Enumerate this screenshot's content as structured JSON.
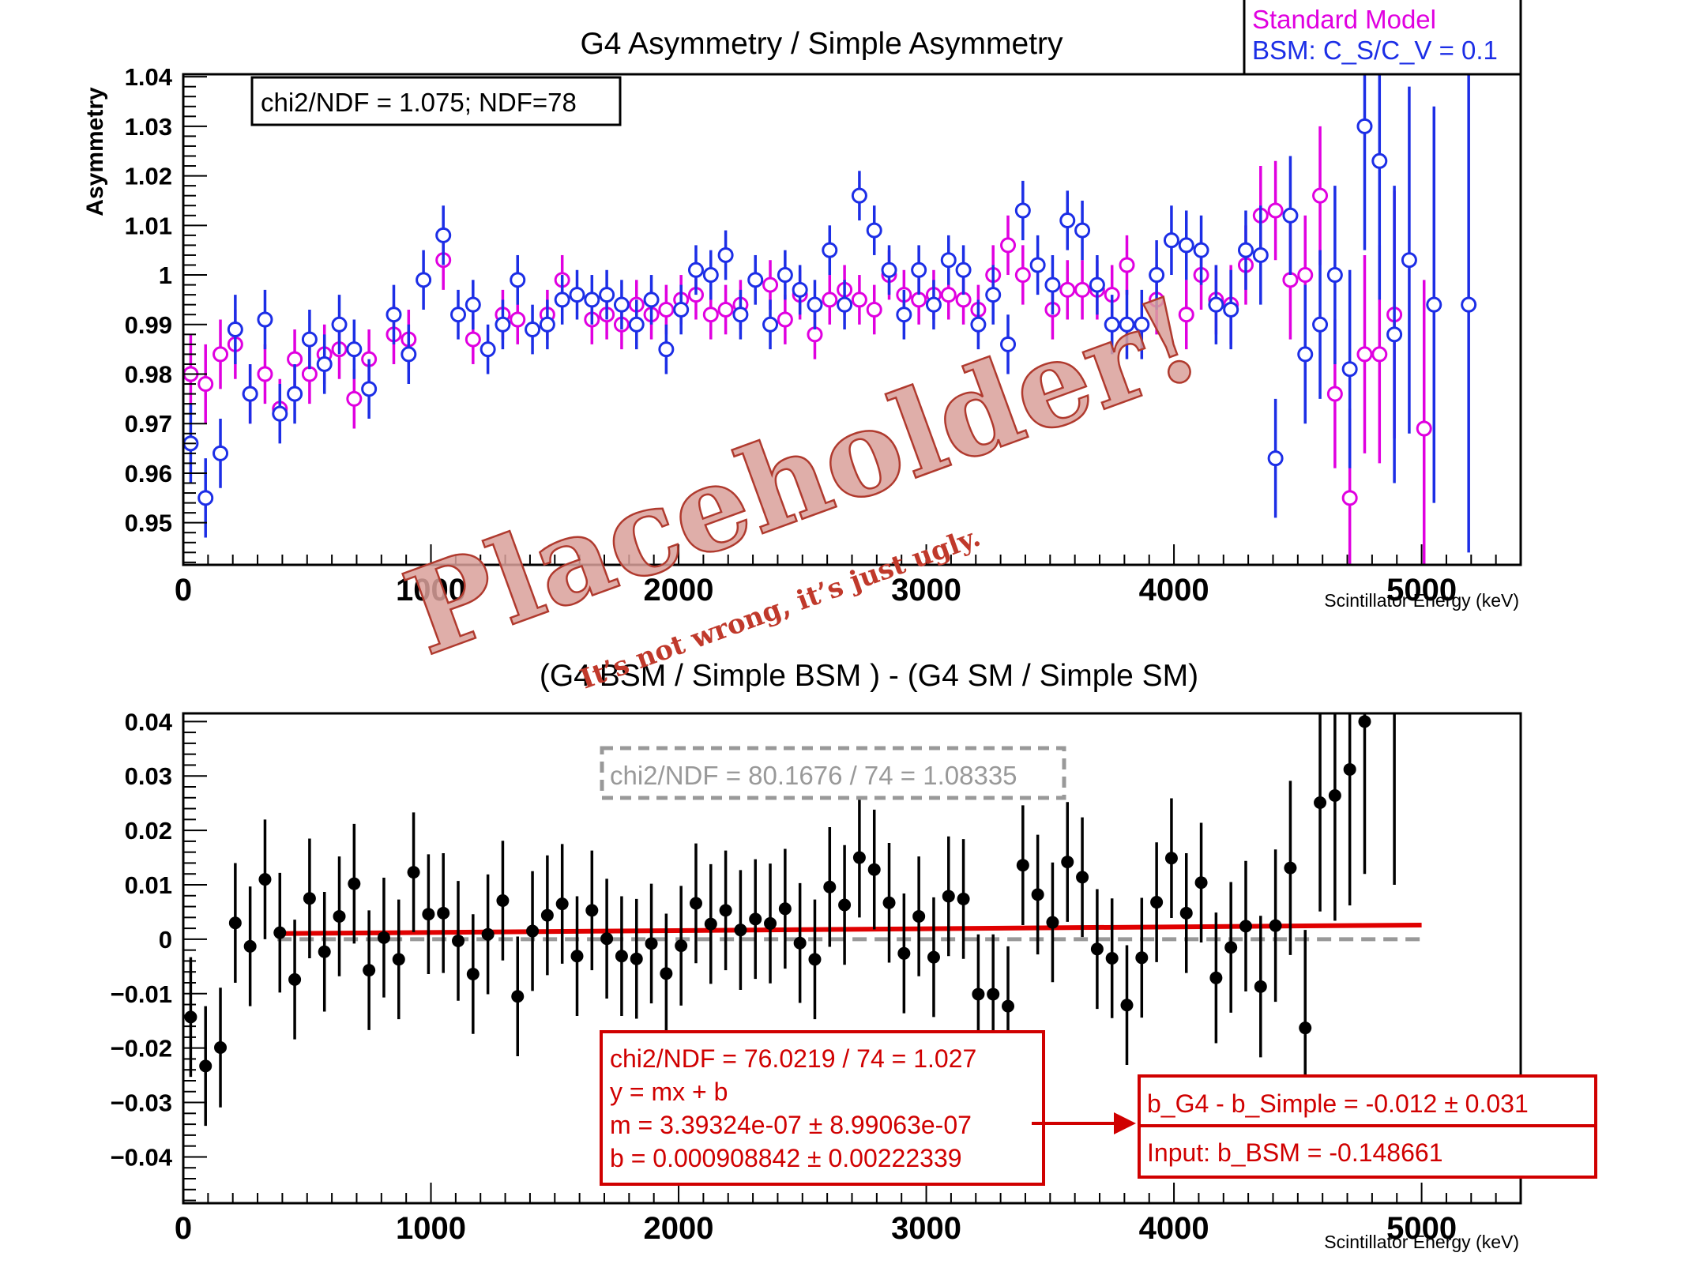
{
  "chart_data": [
    {
      "type": "scatter",
      "title": "G4 Asymmetry / Simple Asymmetry",
      "xlabel": "Scintillator Energy (keV)",
      "ylabel": "Asymmetry",
      "xlim": [
        0,
        5400
      ],
      "ylim": [
        0.9415,
        1.0405
      ],
      "x_ticks": [
        0,
        1000,
        2000,
        3000,
        4000,
        5000
      ],
      "x_tick_labels": [
        "0",
        "1000",
        "2000",
        "3000",
        "4000",
        "5000"
      ],
      "y_ticks": [
        0.95,
        0.96,
        0.97,
        0.98,
        0.99,
        1.0,
        1.01,
        1.02,
        1.03,
        1.04
      ],
      "y_tick_labels": [
        "0.95",
        "0.96",
        "0.97",
        "0.98",
        "0.99",
        "1",
        "1.01",
        "1.02",
        "1.03",
        "1.04"
      ],
      "legend": {
        "placement": "top-right, outside",
        "entries": [
          {
            "label": "Standard Model",
            "color": "#e000e0"
          },
          {
            "label": "BSM:  C_S/C_V = 0.1",
            "color": "#1c2ee6"
          }
        ]
      },
      "annotation": "chi2/NDF = 1.075;  NDF=78",
      "series": [
        {
          "name": "Standard Model",
          "color": "#e000e0",
          "marker": "open-circle",
          "x": [
            30,
            90,
            150,
            210,
            270,
            330,
            390,
            450,
            510,
            570,
            630,
            690,
            750,
            850,
            910,
            1050,
            1170,
            1290,
            1350,
            1470,
            1530,
            1650,
            1710,
            1770,
            1830,
            1890,
            1950,
            2010,
            2070,
            2130,
            2190,
            2250,
            2370,
            2430,
            2490,
            2550,
            2610,
            2670,
            2730,
            2790,
            2850,
            2910,
            2970,
            3030,
            3090,
            3150,
            3210,
            3270,
            3330,
            3390,
            3510,
            3570,
            3630,
            3690,
            3750,
            3810,
            3930,
            4050,
            4110,
            4170,
            4230,
            4290,
            4350,
            4410,
            4470,
            4530,
            4590,
            4650,
            4710,
            4770,
            4830,
            4890,
            5010
          ],
          "y": [
            0.98,
            0.978,
            0.984,
            0.986,
            0.976,
            0.98,
            0.973,
            0.983,
            0.98,
            0.984,
            0.985,
            0.975,
            0.983,
            0.988,
            0.987,
            1.003,
            0.987,
            0.992,
            0.991,
            0.992,
            0.999,
            0.991,
            0.992,
            0.99,
            0.994,
            0.992,
            0.993,
            0.995,
            0.996,
            0.992,
            0.993,
            0.994,
            0.998,
            0.991,
            0.996,
            0.988,
            0.995,
            0.997,
            0.995,
            0.993,
            1.0,
            0.996,
            0.995,
            0.996,
            0.996,
            0.995,
            0.993,
            1.0,
            1.006,
            1.0,
            0.993,
            0.997,
            0.997,
            0.997,
            0.996,
            1.002,
            0.995,
            0.992,
            1.0,
            0.995,
            0.994,
            1.002,
            1.012,
            1.013,
            0.999,
            1.0,
            1.016,
            0.976,
            0.955,
            0.984,
            0.984,
            0.992,
            0.969
          ],
          "yerr": [
            0.008,
            0.008,
            0.007,
            0.007,
            0.006,
            0.006,
            0.006,
            0.006,
            0.006,
            0.006,
            0.006,
            0.006,
            0.006,
            0.006,
            0.006,
            0.006,
            0.005,
            0.005,
            0.005,
            0.005,
            0.005,
            0.005,
            0.005,
            0.005,
            0.005,
            0.005,
            0.005,
            0.005,
            0.005,
            0.005,
            0.005,
            0.005,
            0.005,
            0.005,
            0.005,
            0.005,
            0.005,
            0.005,
            0.005,
            0.005,
            0.005,
            0.005,
            0.005,
            0.005,
            0.005,
            0.005,
            0.005,
            0.006,
            0.006,
            0.006,
            0.006,
            0.006,
            0.006,
            0.006,
            0.006,
            0.006,
            0.007,
            0.007,
            0.007,
            0.007,
            0.008,
            0.008,
            0.01,
            0.01,
            0.012,
            0.012,
            0.014,
            0.015,
            0.018,
            0.02,
            0.022,
            0.025,
            0.03
          ]
        },
        {
          "name": "BSM:  C_S/C_V = 0.1",
          "color": "#1c2ee6",
          "marker": "open-circle",
          "x": [
            30,
            90,
            150,
            210,
            270,
            330,
            390,
            450,
            510,
            570,
            630,
            690,
            750,
            850,
            910,
            970,
            1050,
            1110,
            1170,
            1230,
            1290,
            1350,
            1410,
            1470,
            1530,
            1590,
            1650,
            1710,
            1770,
            1830,
            1890,
            1950,
            2010,
            2070,
            2130,
            2190,
            2250,
            2310,
            2370,
            2430,
            2490,
            2550,
            2610,
            2670,
            2730,
            2790,
            2850,
            2910,
            2970,
            3030,
            3090,
            3150,
            3210,
            3270,
            3330,
            3390,
            3450,
            3510,
            3570,
            3630,
            3690,
            3750,
            3810,
            3870,
            3930,
            3990,
            4050,
            4110,
            4170,
            4230,
            4290,
            4350,
            4410,
            4470,
            4530,
            4590,
            4650,
            4710,
            4770,
            4830,
            4890,
            4950,
            5050,
            5190
          ],
          "y": [
            0.966,
            0.955,
            0.964,
            0.989,
            0.976,
            0.991,
            0.972,
            0.976,
            0.987,
            0.982,
            0.99,
            0.985,
            0.977,
            0.992,
            0.984,
            0.999,
            1.008,
            0.992,
            0.994,
            0.985,
            0.99,
            0.999,
            0.989,
            0.99,
            0.995,
            0.996,
            0.995,
            0.996,
            0.994,
            0.99,
            0.995,
            0.985,
            0.993,
            1.001,
            1.0,
            1.004,
            0.992,
            0.999,
            0.99,
            1.0,
            0.997,
            0.994,
            1.005,
            0.994,
            1.016,
            1.009,
            1.001,
            0.992,
            1.001,
            0.994,
            1.003,
            1.001,
            0.99,
            0.996,
            0.986,
            1.013,
            1.002,
            0.998,
            1.011,
            1.009,
            0.998,
            0.99,
            0.99,
            0.99,
            1.0,
            1.007,
            1.006,
            1.005,
            0.994,
            0.993,
            1.005,
            1.004,
            0.963,
            1.012,
            0.984,
            0.99,
            1.0,
            0.981,
            1.03,
            1.023,
            0.988,
            1.003,
            0.994,
            0.994
          ],
          "yerr": [
            0.008,
            0.008,
            0.007,
            0.007,
            0.006,
            0.006,
            0.006,
            0.006,
            0.006,
            0.006,
            0.006,
            0.006,
            0.006,
            0.006,
            0.006,
            0.006,
            0.006,
            0.005,
            0.005,
            0.005,
            0.005,
            0.005,
            0.005,
            0.005,
            0.005,
            0.005,
            0.005,
            0.005,
            0.005,
            0.005,
            0.005,
            0.005,
            0.005,
            0.005,
            0.005,
            0.005,
            0.005,
            0.005,
            0.005,
            0.005,
            0.005,
            0.005,
            0.005,
            0.005,
            0.005,
            0.005,
            0.005,
            0.005,
            0.005,
            0.005,
            0.005,
            0.005,
            0.005,
            0.006,
            0.006,
            0.006,
            0.006,
            0.006,
            0.006,
            0.006,
            0.006,
            0.006,
            0.007,
            0.007,
            0.007,
            0.007,
            0.007,
            0.007,
            0.008,
            0.008,
            0.008,
            0.01,
            0.012,
            0.012,
            0.014,
            0.015,
            0.018,
            0.02,
            0.025,
            0.028,
            0.03,
            0.035,
            0.04,
            0.05
          ]
        }
      ]
    },
    {
      "type": "scatter",
      "title": "(G4 BSM / Simple BSM ) - (G4 SM / Simple SM)",
      "xlabel": "Scintillator Energy (keV)",
      "ylabel": "",
      "xlim": [
        0,
        5400
      ],
      "ylim": [
        -0.0485,
        0.0415
      ],
      "x_ticks": [
        0,
        1000,
        2000,
        3000,
        4000,
        5000
      ],
      "x_tick_labels": [
        "0",
        "1000",
        "2000",
        "3000",
        "4000",
        "5000"
      ],
      "y_ticks": [
        -0.04,
        -0.03,
        -0.02,
        -0.01,
        0,
        0.01,
        0.02,
        0.03,
        0.04
      ],
      "y_tick_labels": [
        "−0.04",
        "−0.03",
        "−0.02",
        "−0.01",
        "0",
        "0.01",
        "0.02",
        "0.03",
        "0.04"
      ],
      "series": [
        {
          "marker": "filled-circle",
          "color": "#000000",
          "x": [
            30,
            90,
            150,
            210,
            270,
            330,
            390,
            450,
            510,
            570,
            630,
            690,
            750,
            810,
            870,
            930,
            990,
            1050,
            1110,
            1170,
            1230,
            1290,
            1350,
            1410,
            1470,
            1530,
            1590,
            1650,
            1710,
            1770,
            1830,
            1890,
            1950,
            2010,
            2070,
            2130,
            2190,
            2250,
            2310,
            2370,
            2430,
            2490,
            2550,
            2610,
            2670,
            2730,
            2790,
            2850,
            2910,
            2970,
            3030,
            3090,
            3150,
            3210,
            3270,
            3330,
            3390,
            3450,
            3510,
            3570,
            3630,
            3690,
            3750,
            3810,
            3870,
            3930,
            3990,
            4050,
            4110,
            4170,
            4230,
            4290,
            4350,
            4410,
            4470,
            4530,
            4590,
            4650,
            4710,
            4770,
            4890
          ],
          "y": [
            -0.0143,
            -0.0233,
            -0.0199,
            0.003,
            -0.0013,
            0.011,
            0.0012,
            -0.0074,
            0.0075,
            -0.0023,
            0.0042,
            0.0102,
            -0.0057,
            0.0003,
            -0.0037,
            0.0123,
            0.0046,
            0.0048,
            -0.0003,
            -0.0064,
            0.0009,
            0.0071,
            -0.0105,
            0.0015,
            0.0044,
            0.0065,
            -0.0031,
            0.0053,
            0.0001,
            -0.0031,
            -0.0036,
            -0.0008,
            -0.0063,
            -0.0012,
            0.0066,
            0.0028,
            0.0053,
            0.0017,
            0.0037,
            0.0029,
            0.0056,
            -0.0007,
            -0.0037,
            0.0096,
            0.0063,
            0.015,
            0.0128,
            0.0067,
            -0.0026,
            0.0042,
            -0.0033,
            0.0079,
            0.0074,
            -0.0101,
            -0.0101,
            -0.0123,
            0.0136,
            0.0082,
            0.0031,
            0.0142,
            0.0114,
            -0.0018,
            -0.0035,
            -0.0121,
            -0.0034,
            0.0068,
            0.0149,
            0.0048,
            0.0104,
            -0.0071,
            -0.0015,
            0.0024,
            -0.0087,
            0.0025,
            0.0131,
            -0.0163,
            0.0251,
            0.0264,
            0.0312,
            0.04,
            0.045
          ],
          "yerr": [
            0.011,
            0.011,
            0.011,
            0.011,
            0.011,
            0.011,
            0.011,
            0.011,
            0.011,
            0.011,
            0.011,
            0.011,
            0.011,
            0.011,
            0.011,
            0.011,
            0.011,
            0.011,
            0.011,
            0.011,
            0.011,
            0.011,
            0.011,
            0.011,
            0.011,
            0.011,
            0.011,
            0.011,
            0.011,
            0.011,
            0.011,
            0.011,
            0.011,
            0.011,
            0.011,
            0.011,
            0.011,
            0.011,
            0.011,
            0.011,
            0.011,
            0.011,
            0.011,
            0.011,
            0.011,
            0.011,
            0.011,
            0.011,
            0.011,
            0.011,
            0.011,
            0.011,
            0.011,
            0.011,
            0.011,
            0.011,
            0.011,
            0.011,
            0.011,
            0.011,
            0.011,
            0.011,
            0.011,
            0.011,
            0.011,
            0.011,
            0.011,
            0.011,
            0.011,
            0.012,
            0.012,
            0.012,
            0.013,
            0.014,
            0.016,
            0.018,
            0.02,
            0.023,
            0.025,
            0.028,
            0.035
          ]
        }
      ],
      "fit_line": {
        "color": "#e00000",
        "m": 3.39324e-07,
        "b": 0.000908842,
        "x_range": [
          380,
          5000
        ]
      },
      "reference_line": {
        "color": "#999999",
        "style": "dashed",
        "y": 0,
        "x_range": [
          380,
          5000
        ]
      },
      "stat_box": "chi2/NDF = 80.1676 / 74 = 1.08335",
      "fit_box_lines": [
        "chi2/NDF = 76.0219 / 74 = 1.027",
        "y  = mx + b",
        "m = 3.39324e-07  ± 8.99063e-07",
        "b  = 0.000908842 ± 0.00222339"
      ],
      "result_box_lines": [
        "b_G4 - b_Simple = -0.012 ±  0.031",
        "Input:  b_BSM = -0.148661"
      ]
    }
  ],
  "watermark": {
    "text": "Placeholder!",
    "subtext": "It’s not wrong, it’s just ugly.",
    "color": "#d9a09a",
    "subcolor": "#c0392b"
  }
}
